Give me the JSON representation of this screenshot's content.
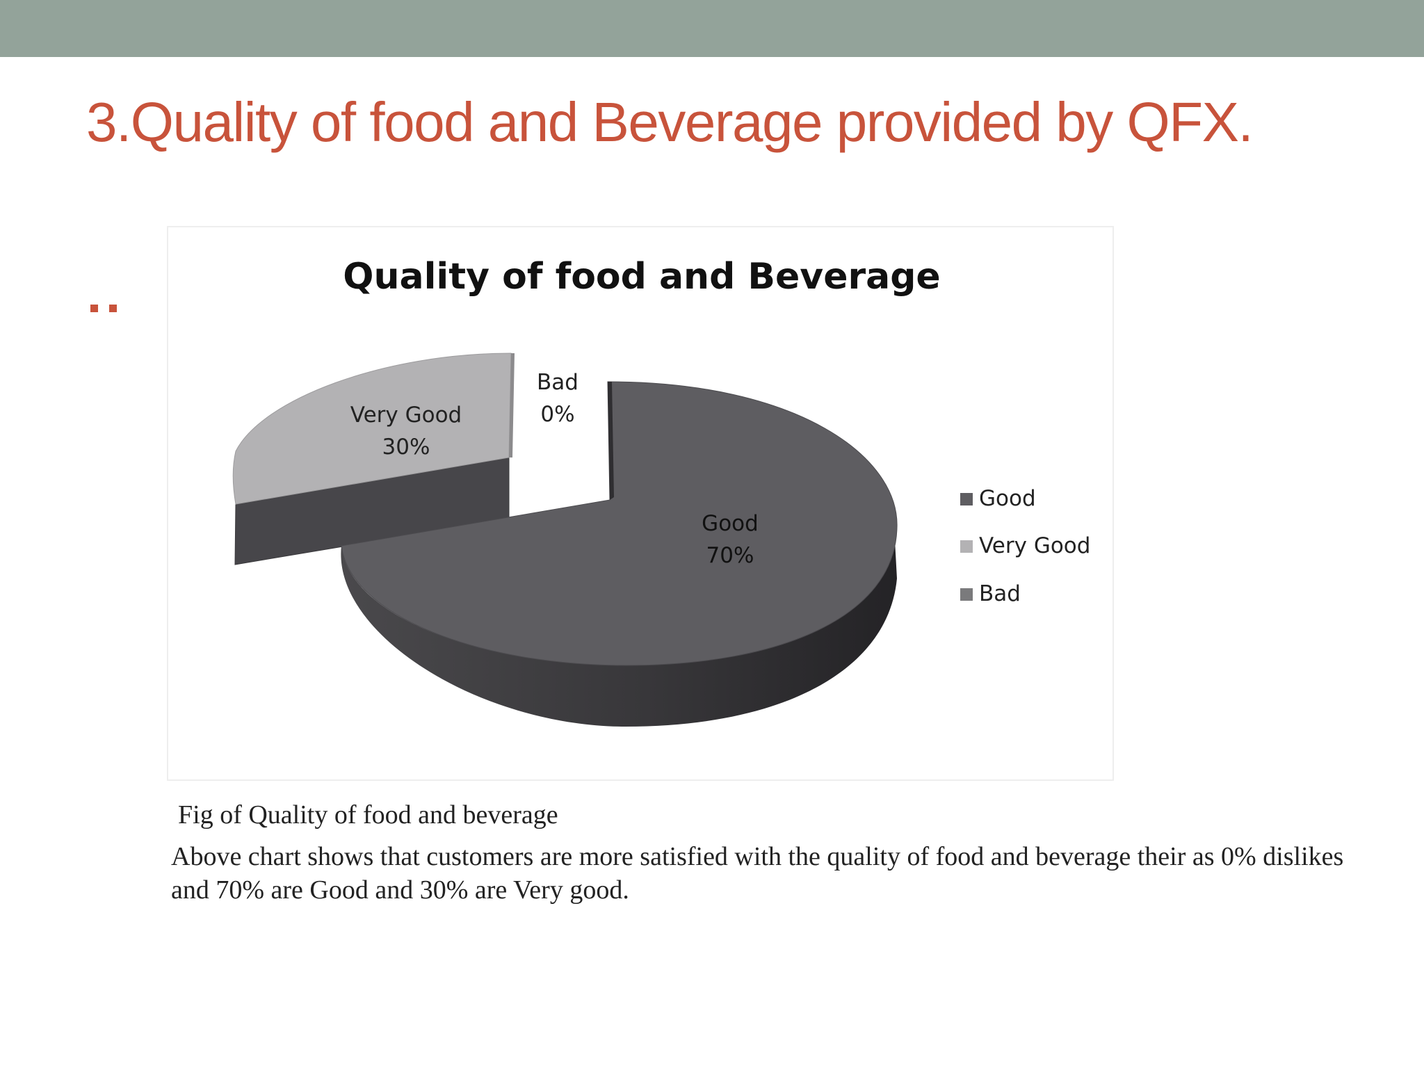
{
  "slide": {
    "title": "3.Quality of food and Beverage provided by QFX.",
    "caption": "Fig of Quality of food and beverage",
    "description": "Above chart shows that customers are more satisfied with the quality of food and beverage their as 0% dislikes and 70% are Good and 30% are Very good."
  },
  "colors": {
    "top_bar": "#93a39a",
    "title": "#c8533b",
    "good": "#5e5d61",
    "very_good": "#b3b2b4",
    "bad": "#7a7a7c"
  },
  "chart_data": {
    "type": "pie",
    "title": "Quality of food and Beverage",
    "labels": [
      "Good",
      "Very Good",
      "Bad"
    ],
    "values": [
      70,
      30,
      0
    ],
    "value_labels": [
      "70%",
      "30%",
      "0%"
    ],
    "legend_position": "right",
    "exploded": true,
    "three_d": true
  }
}
